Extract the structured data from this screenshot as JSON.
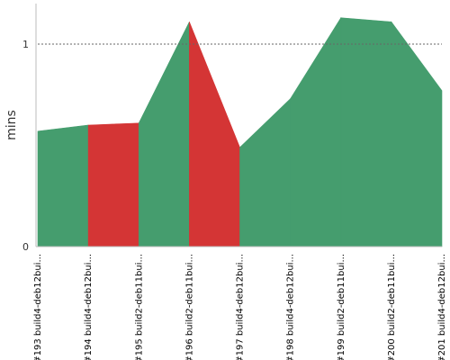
{
  "chart_data": {
    "type": "area",
    "ylabel": "mins",
    "y_ticks": [
      "0",
      "1"
    ],
    "ylim": [
      0,
      1.2
    ],
    "threshold_line": 1,
    "categories": [
      "#193 build4-deb12bui...",
      "#194 build4-deb12bui...",
      "#195 build2-deb11bui...",
      "#196 build2-deb11bui...",
      "#197 build4-deb12bui...",
      "#198 build4-deb12bui...",
      "#199 build2-deb11bui...",
      "#200 build2-deb11bui...",
      "#201 build4-deb12bui..."
    ],
    "values": [
      0.57,
      0.6,
      0.61,
      1.11,
      0.49,
      0.73,
      1.13,
      1.11,
      0.77
    ],
    "status": [
      "success",
      "success",
      "failure",
      "success",
      "failure",
      "success",
      "success",
      "success",
      "success"
    ],
    "colors": {
      "success": "#459d6e",
      "failure": "#d43535",
      "grid": "#666666",
      "axis": "#bbbbbb"
    }
  }
}
